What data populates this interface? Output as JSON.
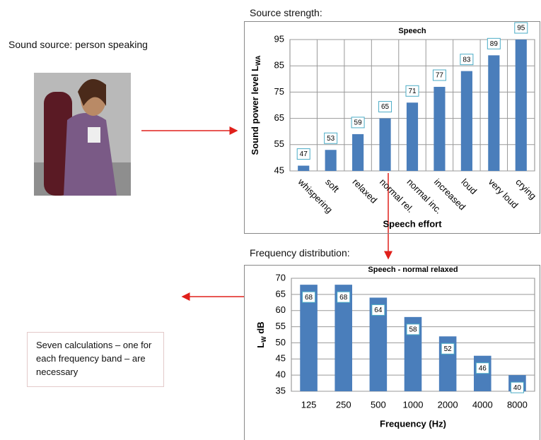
{
  "labels": {
    "source": "Sound source: person speaking",
    "strength": "Source strength:",
    "frequency": "Frequency distribution:",
    "note": "Seven calculations – one for each frequency band – are necessary"
  },
  "chart_data": [
    {
      "type": "bar",
      "title": "Speech",
      "categories": [
        "whispering",
        "soft",
        "relaxed",
        "normal rel.",
        "normal inc.",
        "increased",
        "loud",
        "very loud",
        "crying"
      ],
      "values": [
        47,
        53,
        59,
        65,
        71,
        77,
        83,
        89,
        95
      ],
      "color": "#4a7ebb",
      "ylim": [
        45,
        95
      ],
      "yticks": [
        45,
        55,
        65,
        75,
        85,
        95
      ],
      "y_label": {
        "main": "Sound power level L",
        "sub": "WA"
      },
      "x_label": "Speech effort",
      "grid": "both"
    },
    {
      "type": "bar",
      "title": "Speech - normal relaxed",
      "categories": [
        "125",
        "250",
        "500",
        "1000",
        "2000",
        "4000",
        "8000"
      ],
      "values": [
        68,
        68,
        64,
        58,
        52,
        46,
        40
      ],
      "color": "#4a7ebb",
      "ylim": [
        35,
        70
      ],
      "yticks": [
        35,
        40,
        45,
        50,
        55,
        60,
        65,
        70
      ],
      "y_label": {
        "main": "L",
        "sub": "W",
        "after": " dB"
      },
      "x_label": "Frequency (Hz)",
      "grid": "y"
    }
  ]
}
